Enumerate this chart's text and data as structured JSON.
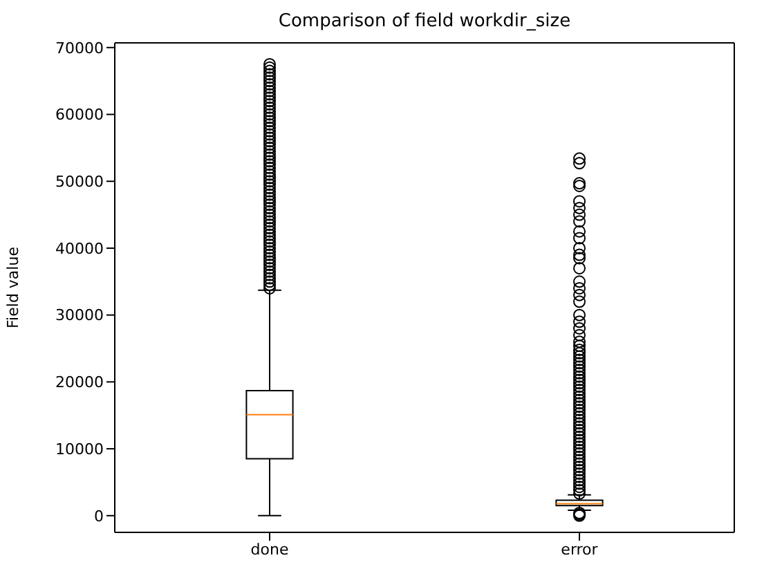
{
  "chart_data": {
    "type": "box",
    "title": "Comparison of field workdir_size",
    "ylabel": "Field value",
    "categories": [
      "done",
      "error"
    ],
    "boxes": [
      {
        "low": 0,
        "q1": 8500,
        "median": 15100,
        "q3": 18700,
        "high": 33700,
        "outliers": [
          34000,
          34500,
          35000,
          35500,
          36000,
          36500,
          37000,
          37500,
          38000,
          38500,
          39000,
          39500,
          40000,
          40500,
          41000,
          41500,
          42000,
          42500,
          43000,
          43500,
          44000,
          44500,
          45000,
          45500,
          46000,
          46500,
          47000,
          47500,
          48000,
          48500,
          49000,
          49500,
          50000,
          50500,
          51000,
          51500,
          52000,
          52500,
          53000,
          53500,
          54000,
          54500,
          55000,
          55500,
          56000,
          56500,
          57000,
          57500,
          58000,
          58500,
          59000,
          59500,
          60000,
          60500,
          61000,
          61500,
          62000,
          62500,
          63000,
          63500,
          64000,
          64500,
          65000,
          65500,
          66000,
          66500,
          67000,
          67500
        ]
      },
      {
        "low": 800,
        "q1": 1500,
        "median": 1800,
        "q3": 2300,
        "high": 3100,
        "outliers": [
          0,
          200,
          400,
          3300,
          3800,
          4300,
          4800,
          5300,
          5800,
          6300,
          6800,
          7300,
          7800,
          8300,
          8800,
          9300,
          9800,
          10300,
          10800,
          11300,
          11800,
          12300,
          12800,
          13300,
          13800,
          14300,
          14800,
          15300,
          15800,
          16300,
          16800,
          17300,
          17800,
          18300,
          18800,
          19300,
          19800,
          20300,
          20800,
          21300,
          21800,
          22300,
          22800,
          23300,
          23800,
          24300,
          24800,
          25400,
          26000,
          27000,
          28000,
          29000,
          30000,
          32000,
          33000,
          34000,
          35000,
          37000,
          38500,
          39000,
          40000,
          41500,
          42500,
          44000,
          45000,
          46000,
          47000,
          49300,
          49700,
          52700,
          53400
        ]
      }
    ],
    "ylim": [
      -2500,
      70700
    ],
    "yticks": [
      0,
      10000,
      20000,
      30000,
      40000,
      50000,
      60000,
      70000
    ]
  }
}
